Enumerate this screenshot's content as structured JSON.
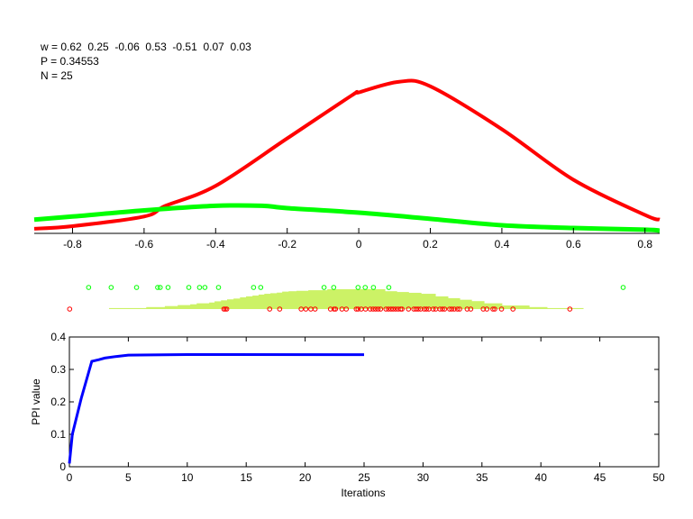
{
  "info": {
    "w_line": "w = 0.62  0.25  -0.06  0.53  -0.51  0.07  0.03",
    "p_line": "P = 0.34553",
    "n_line": "N = 25"
  },
  "chart_data": [
    {
      "type": "line",
      "xlim": [
        -0.907,
        0.841
      ],
      "ylim": [
        0,
        1
      ],
      "xticks": [
        -0.8,
        -0.6,
        -0.4,
        -0.2,
        0,
        0.2,
        0.4,
        0.6,
        0.8
      ],
      "xtick_labels": [
        "-0.8",
        "-0.6",
        "-0.4",
        "-0.2",
        "0",
        "0.2",
        "0.4",
        "0.6",
        "0.8"
      ],
      "y_axis_shown": false,
      "grid": false,
      "series": [
        {
          "color": "#ff0000",
          "x": [
            -0.907,
            -0.8,
            -0.6,
            -0.54,
            -0.4,
            -0.2,
            -0.02,
            0,
            0.113,
            0.2,
            0.4,
            0.6,
            0.8,
            0.841
          ],
          "y": [
            0.03,
            0.047,
            0.11,
            0.18,
            0.31,
            0.62,
            0.9,
            0.92,
            0.99,
            0.96,
            0.68,
            0.35,
            0.12,
            0.09
          ]
        },
        {
          "color": "#00ff00",
          "x": [
            -0.907,
            -0.8,
            -0.6,
            -0.4,
            -0.27,
            -0.2,
            0,
            0.2,
            0.4,
            0.6,
            0.8,
            0.841
          ],
          "y": [
            0.09,
            0.11,
            0.15,
            0.18,
            0.18,
            0.165,
            0.135,
            0.095,
            0.053,
            0.035,
            0.024,
            0.018
          ]
        }
      ]
    },
    {
      "type": "scatter",
      "xlim": [
        -0.907,
        0.841
      ],
      "axes_shown": false,
      "histogram": {
        "color": "#ccf266",
        "edges": [
          -0.698,
          -0.594,
          -0.542,
          -0.506,
          -0.471,
          -0.453,
          -0.418,
          -0.403,
          -0.385,
          -0.368,
          -0.35,
          -0.332,
          -0.315,
          -0.297,
          -0.28,
          -0.264,
          -0.247,
          -0.229,
          -0.214,
          -0.196,
          -0.174,
          -0.141,
          -0.088,
          0.073,
          0.106,
          0.139,
          0.174,
          0.214,
          0.249,
          0.282,
          0.315,
          0.35,
          0.4,
          0.476,
          0.526,
          0.627
        ],
        "heights": [
          0.05,
          0.1,
          0.15,
          0.2,
          0.24,
          0.29,
          0.33,
          0.39,
          0.44,
          0.49,
          0.53,
          0.59,
          0.64,
          0.68,
          0.73,
          0.77,
          0.8,
          0.83,
          0.88,
          0.9,
          0.92,
          0.95,
          1.0,
          0.9,
          0.86,
          0.82,
          0.77,
          0.64,
          0.55,
          0.47,
          0.4,
          0.29,
          0.18,
          0.1,
          0.05
        ]
      },
      "series": [
        {
          "color": "#00ff00",
          "row": "top",
          "x": [
            -0.755,
            -0.692,
            -0.621,
            -0.562,
            -0.555,
            -0.533,
            -0.475,
            -0.445,
            -0.43,
            -0.392,
            -0.294,
            -0.274,
            -0.097,
            -0.07,
            -0.002,
            0.018,
            0.041,
            0.084,
            0.739
          ]
        },
        {
          "color": "#ff0000",
          "row": "bottom",
          "x": [
            -0.808,
            -0.377,
            -0.373,
            -0.369,
            -0.249,
            -0.221,
            -0.161,
            -0.148,
            -0.134,
            -0.122,
            -0.079,
            -0.069,
            -0.065,
            -0.047,
            -0.035,
            -0.007,
            -0.002,
            0.007,
            0.019,
            0.032,
            0.04,
            0.047,
            0.054,
            0.061,
            0.076,
            0.083,
            0.09,
            0.096,
            0.103,
            0.11,
            0.117,
            0.121,
            0.139,
            0.154,
            0.16,
            0.166,
            0.173,
            0.183,
            0.189,
            0.196,
            0.208,
            0.215,
            0.227,
            0.234,
            0.24,
            0.254,
            0.26,
            0.267,
            0.276,
            0.282,
            0.303,
            0.313,
            0.348,
            0.358,
            0.375,
            0.38,
            0.399,
            0.431,
            0.59
          ]
        }
      ]
    },
    {
      "type": "line",
      "xlabel": "Iterations",
      "ylabel": "PPI value",
      "xlim": [
        0,
        50
      ],
      "ylim": [
        0,
        0.4
      ],
      "xticks": [
        0,
        5,
        10,
        15,
        20,
        25,
        30,
        35,
        40,
        45,
        50
      ],
      "xtick_labels": [
        "0",
        "5",
        "10",
        "15",
        "20",
        "25",
        "30",
        "35",
        "40",
        "45",
        "50"
      ],
      "yticks": [
        0,
        0.1,
        0.2,
        0.3,
        0.4
      ],
      "ytick_labels": [
        "0",
        "0.1",
        "0.2",
        "0.3",
        "0.4"
      ],
      "grid": false,
      "series": [
        {
          "color": "#0000ff",
          "x": [
            0,
            0.25,
            1,
            1.9,
            2.5,
            3,
            4,
            5,
            10,
            25
          ],
          "y": [
            0.01,
            0.1,
            0.21,
            0.325,
            0.33,
            0.335,
            0.34,
            0.344,
            0.346,
            0.3455
          ]
        }
      ]
    }
  ]
}
